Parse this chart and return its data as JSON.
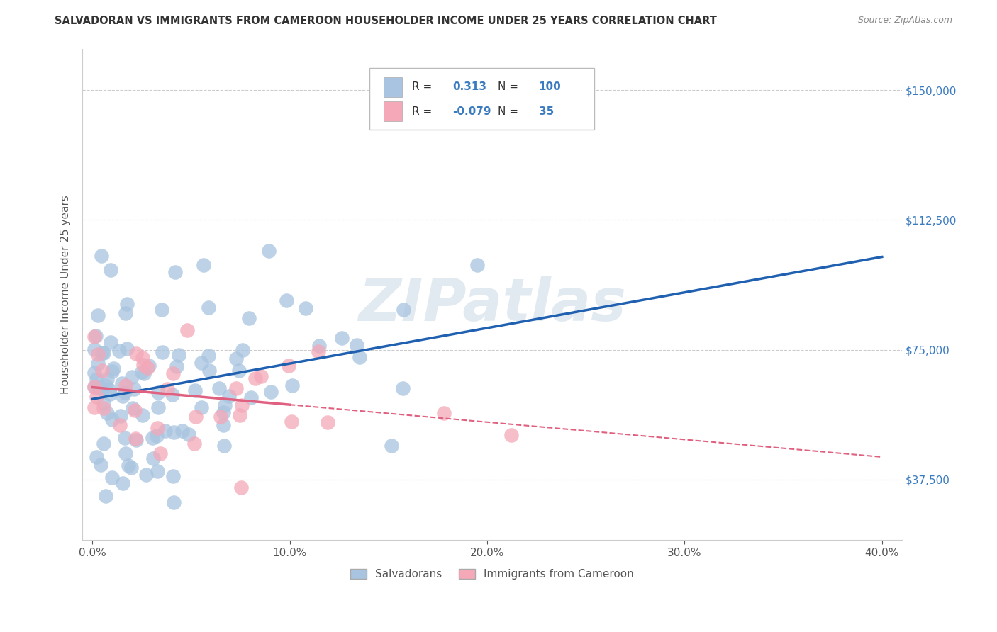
{
  "title": "SALVADORAN VS IMMIGRANTS FROM CAMEROON HOUSEHOLDER INCOME UNDER 25 YEARS CORRELATION CHART",
  "source": "Source: ZipAtlas.com",
  "ylabel": "Householder Income Under 25 years",
  "xlabel_ticks": [
    "0.0%",
    "10.0%",
    "20.0%",
    "30.0%",
    "40.0%"
  ],
  "xlabel_vals": [
    0,
    10,
    20,
    30,
    40
  ],
  "ytick_labels": [
    "$37,500",
    "$75,000",
    "$112,500",
    "$150,000"
  ],
  "ytick_vals": [
    37500,
    75000,
    112500,
    150000
  ],
  "ylim": [
    20000,
    162000
  ],
  "xlim": [
    -0.5,
    41
  ],
  "R_salv": 0.313,
  "N_salv": 100,
  "R_cam": -0.079,
  "N_cam": 35,
  "color_salv": "#a8c4e0",
  "color_cam": "#f4a8b8",
  "line_color_salv": "#2060b0",
  "line_color_cam": "#e06080",
  "tick_color": "#3a7abf",
  "legend_salv": "Salvadorans",
  "legend_cam": "Immigrants from Cameroon",
  "watermark": "ZIPatlas",
  "background_color": "#ffffff",
  "grid_color": "#cccccc",
  "title_color": "#333333",
  "axis_label_color": "#555555"
}
